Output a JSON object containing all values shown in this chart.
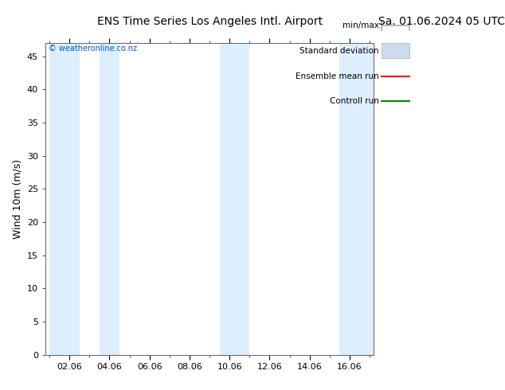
{
  "title_left": "ENS Time Series Los Angeles Intl. Airport",
  "title_right": "Sa. 01.06.2024 05 UTC",
  "ylabel": "Wind 10m (m/s)",
  "ylim": [
    0,
    47
  ],
  "yticks": [
    0,
    5,
    10,
    15,
    20,
    25,
    30,
    35,
    40,
    45
  ],
  "xlabel_dates": [
    "02.06",
    "04.06",
    "06.06",
    "08.06",
    "10.06",
    "12.06",
    "14.06",
    "16.06"
  ],
  "x_positions": [
    1,
    3,
    5,
    7,
    9,
    11,
    13,
    15
  ],
  "xlim": [
    -0.2,
    16.2
  ],
  "shaded_bands": [
    [
      0.0,
      1.5
    ],
    [
      2.5,
      3.5
    ],
    [
      8.5,
      10.0
    ],
    [
      14.5,
      16.2
    ]
  ],
  "shade_color": "#ddeeff",
  "bg_color": "#ffffff",
  "watermark_text": "© weatheronline.co.nz",
  "watermark_color": "#0055cc",
  "legend_labels": [
    "min/max",
    "Standard deviation",
    "Ensemble mean run",
    "Controll run"
  ],
  "minmax_color": "#aaaaaa",
  "stddev_color": "#ccdcee",
  "stddev_edge": "#aabbcc",
  "ensemble_color": "#ff0000",
  "control_color": "#008800",
  "title_fontsize": 10,
  "legend_fontsize": 7.5,
  "tick_fontsize": 8,
  "ylabel_fontsize": 9
}
